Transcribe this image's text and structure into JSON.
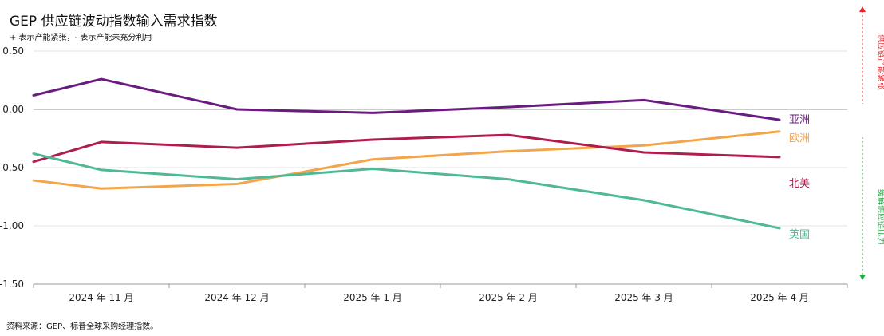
{
  "chart_data": {
    "type": "line",
    "title": "GEP 供应链波动指数输入需求指数",
    "subtitle": "+ 表示产能紧张，- 表示产能未充分利用",
    "source": "资料来源：GEP、标普全球采购经理指数。",
    "categories": [
      "",
      "2024 年 11 月",
      "",
      "2024 年 12 月",
      "",
      "2025 年 1 月",
      "",
      "2025 年 2 月",
      "",
      "2025 年 3 月",
      "",
      "2025 年 4 月",
      ""
    ],
    "x_tick_labels": [
      "2024 年 11 月",
      "2024 年 12 月",
      "2025 年 1 月",
      "2025 年 2 月",
      "2025 年 3 月",
      "2025 年 4 月"
    ],
    "ylim": [
      -1.5,
      0.5
    ],
    "y_ticks": [
      0.5,
      0.0,
      -0.5,
      -1.0,
      -1.5
    ],
    "y_tick_labels": [
      "0.50",
      "0.00",
      "-0.50",
      "-1.00",
      "-1.50"
    ],
    "grid": true,
    "series": [
      {
        "name": "亚洲",
        "color": "#6a1b7f",
        "x": [
          0,
          1,
          3,
          5,
          7,
          9,
          11
        ],
        "values": [
          0.12,
          0.26,
          0.0,
          -0.03,
          0.02,
          0.08,
          -0.09
        ]
      },
      {
        "name": "欧洲",
        "color": "#f2a54a",
        "x": [
          0,
          1,
          3,
          5,
          7,
          9,
          11
        ],
        "values": [
          -0.61,
          -0.68,
          -0.64,
          -0.43,
          -0.36,
          -0.31,
          -0.19
        ]
      },
      {
        "name": "北美",
        "color": "#b01c4e",
        "x": [
          0,
          1,
          3,
          5,
          7,
          9,
          11
        ],
        "values": [
          -0.45,
          -0.28,
          -0.33,
          -0.26,
          -0.22,
          -0.37,
          -0.41
        ]
      },
      {
        "name": "英国",
        "color": "#4fb896",
        "x": [
          0,
          1,
          3,
          5,
          7,
          9,
          11
        ],
        "values": [
          -0.38,
          -0.52,
          -0.6,
          -0.51,
          -0.6,
          -0.78,
          -1.02
        ]
      }
    ],
    "side_labels": {
      "top": {
        "text": "供应链产能紧张",
        "color": "#e8252b"
      },
      "bottom": {
        "text": "缓解供应链压力",
        "color": "#22a845"
      }
    }
  }
}
